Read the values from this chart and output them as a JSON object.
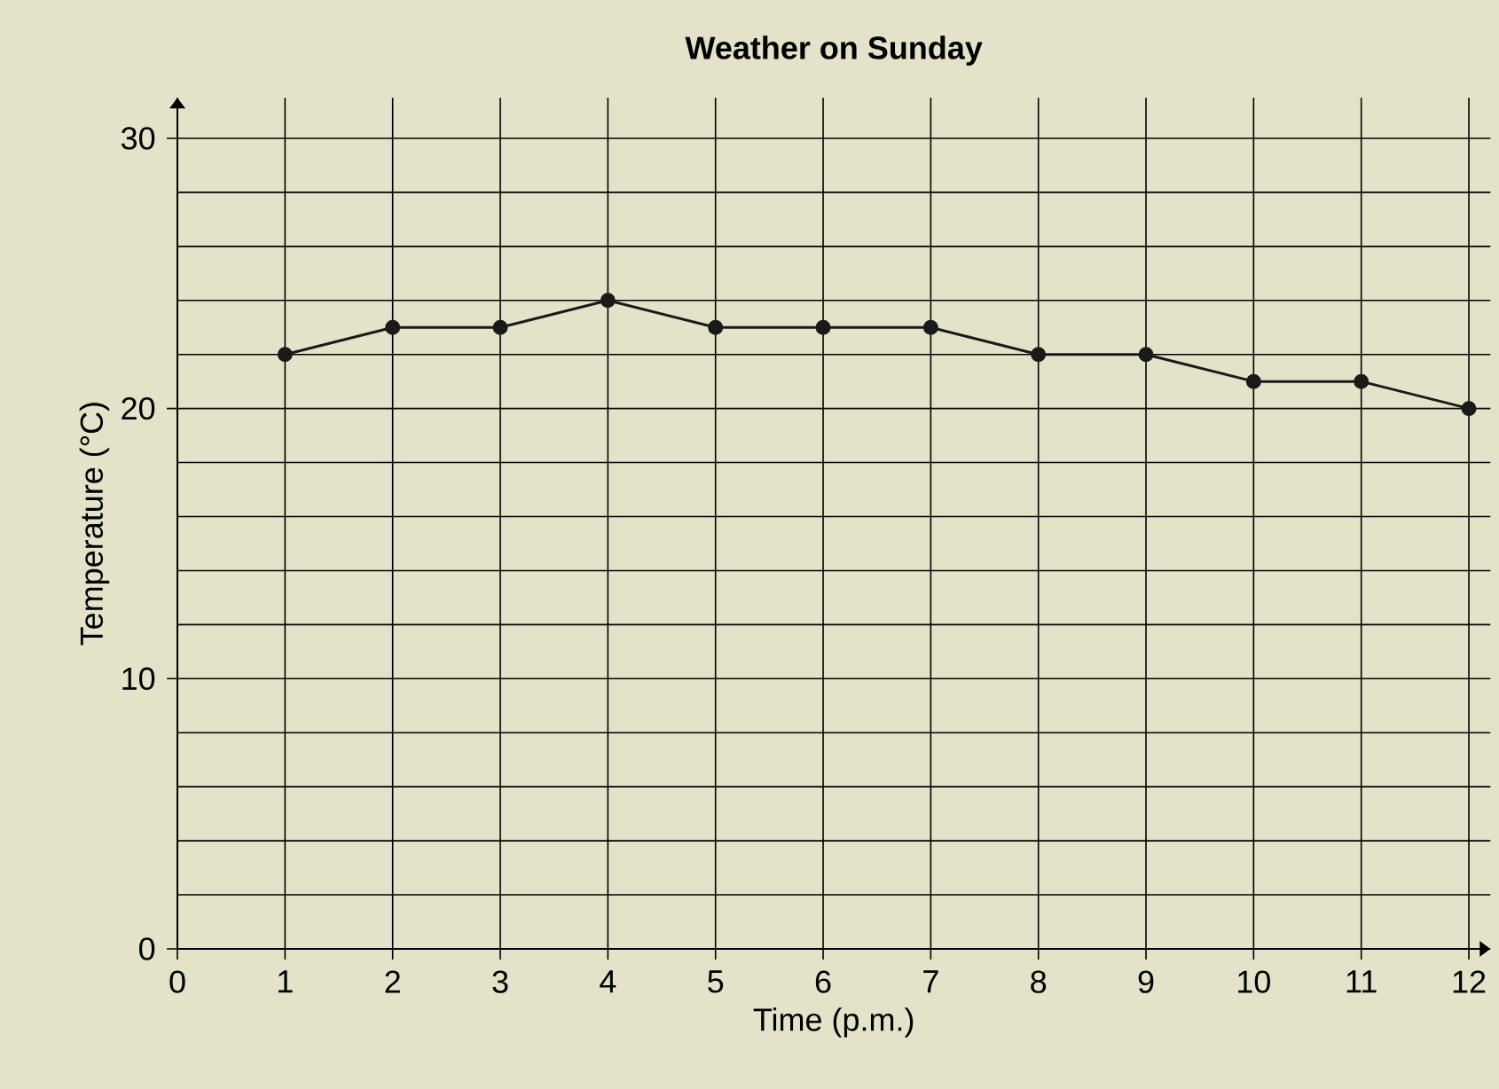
{
  "chart_data": {
    "type": "line",
    "title": "Weather on Sunday",
    "xlabel": "Time (p.m.)",
    "ylabel": "Temperature (°C)",
    "x": [
      1,
      2,
      3,
      4,
      5,
      6,
      7,
      8,
      9,
      10,
      11,
      12
    ],
    "series": [
      {
        "color": "#1a1a1a",
        "values": [
          22,
          23,
          23,
          24,
          23,
          23,
          23,
          22,
          22,
          21,
          21,
          20
        ]
      }
    ],
    "xlim": [
      0,
      12.2
    ],
    "ylim": [
      0,
      31.5
    ],
    "xticks": [
      0,
      1,
      2,
      3,
      4,
      5,
      6,
      7,
      8,
      9,
      10,
      11,
      12
    ],
    "yticks": [
      0,
      10,
      20,
      30
    ],
    "grid": true,
    "marker": "circle",
    "line_style": "solid"
  }
}
